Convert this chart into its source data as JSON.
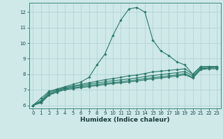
{
  "bg_color": "#cfe8e8",
  "grid_color": "#b0d0d0",
  "line_color": "#2a7a6a",
  "xlabel": "Humidex (Indice chaleur)",
  "xlim": [
    -0.5,
    23.5
  ],
  "ylim": [
    5.8,
    12.6
  ],
  "xticks": [
    0,
    1,
    2,
    3,
    4,
    5,
    6,
    7,
    8,
    9,
    10,
    11,
    12,
    13,
    14,
    15,
    16,
    17,
    18,
    19,
    20,
    21,
    22,
    23
  ],
  "yticks": [
    6,
    7,
    8,
    9,
    10,
    11,
    12
  ],
  "lines": [
    {
      "x": [
        0,
        1,
        2,
        3,
        4,
        5,
        6,
        7,
        8,
        9,
        10,
        11,
        12,
        13,
        14,
        15,
        16,
        17,
        18,
        19,
        20,
        21,
        22,
        23
      ],
      "y": [
        6.0,
        6.45,
        6.9,
        7.05,
        7.2,
        7.35,
        7.5,
        7.8,
        8.6,
        9.3,
        10.5,
        11.5,
        12.2,
        12.3,
        12.0,
        10.2,
        9.5,
        9.2,
        8.8,
        8.6,
        8.0,
        8.5,
        8.5,
        8.5
      ]
    },
    {
      "x": [
        0,
        1,
        2,
        3,
        4,
        5,
        6,
        7,
        8,
        9,
        10,
        11,
        12,
        13,
        14,
        15,
        16,
        17,
        18,
        19,
        20,
        21,
        22,
        23
      ],
      "y": [
        6.0,
        6.3,
        6.85,
        7.0,
        7.15,
        7.25,
        7.35,
        7.45,
        7.55,
        7.65,
        7.72,
        7.8,
        7.9,
        7.95,
        8.05,
        8.15,
        8.2,
        8.25,
        8.3,
        8.35,
        8.0,
        8.5,
        8.5,
        8.5
      ]
    },
    {
      "x": [
        0,
        1,
        2,
        3,
        4,
        5,
        6,
        7,
        8,
        9,
        10,
        11,
        12,
        13,
        14,
        15,
        16,
        17,
        18,
        19,
        20,
        21,
        22,
        23
      ],
      "y": [
        6.0,
        6.25,
        6.75,
        6.95,
        7.1,
        7.2,
        7.28,
        7.36,
        7.44,
        7.52,
        7.58,
        7.64,
        7.7,
        7.76,
        7.85,
        7.92,
        7.98,
        8.04,
        8.1,
        8.18,
        7.9,
        8.4,
        8.45,
        8.45
      ]
    },
    {
      "x": [
        0,
        1,
        2,
        3,
        4,
        5,
        6,
        7,
        8,
        9,
        10,
        11,
        12,
        13,
        14,
        15,
        16,
        17,
        18,
        19,
        20,
        21,
        22,
        23
      ],
      "y": [
        6.0,
        6.2,
        6.7,
        6.9,
        7.05,
        7.12,
        7.2,
        7.27,
        7.34,
        7.41,
        7.47,
        7.52,
        7.58,
        7.64,
        7.72,
        7.78,
        7.84,
        7.9,
        7.96,
        8.05,
        7.8,
        8.35,
        8.4,
        8.4
      ]
    },
    {
      "x": [
        0,
        1,
        2,
        3,
        4,
        5,
        6,
        7,
        8,
        9,
        10,
        11,
        12,
        13,
        14,
        15,
        16,
        17,
        18,
        19,
        20,
        21,
        22,
        23
      ],
      "y": [
        6.0,
        6.15,
        6.65,
        6.85,
        7.0,
        7.07,
        7.14,
        7.2,
        7.27,
        7.34,
        7.4,
        7.45,
        7.5,
        7.56,
        7.64,
        7.7,
        7.76,
        7.82,
        7.88,
        7.97,
        7.75,
        8.3,
        8.35,
        8.35
      ]
    }
  ]
}
